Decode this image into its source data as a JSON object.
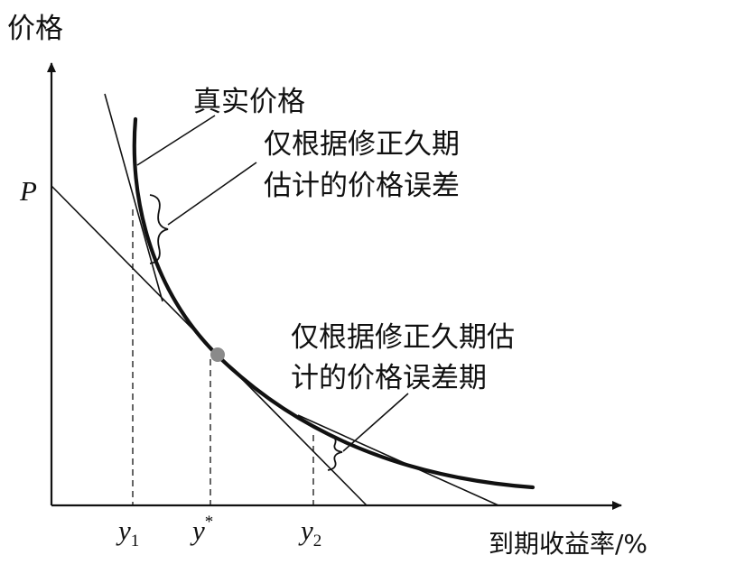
{
  "axes": {
    "y_label": "价格",
    "x_label": "到期收益率/%",
    "p_label": "P"
  },
  "ticks": {
    "y1_base": "y",
    "y1_sub": "1",
    "ystar_base": "y",
    "ystar_sup": "*",
    "y2_base": "y",
    "y2_sub": "2"
  },
  "annotations": {
    "true_price": "真实价格",
    "error_left_line1": "仅根据修正久期",
    "error_left_line2": "估计的价格误差",
    "error_right_line1": "仅根据修正久期估",
    "error_right_line2": "计的价格误差期"
  },
  "colors": {
    "ink": "#111111",
    "tangent_point": "#8a8a8a"
  }
}
